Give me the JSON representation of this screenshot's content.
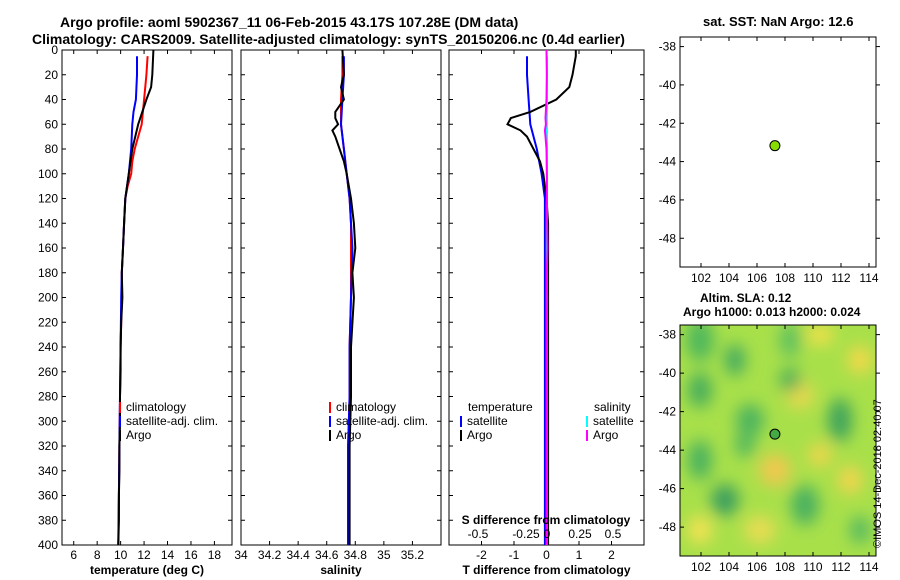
{
  "title_line1": "Argo profile: aoml 5902367_11 06-Feb-2015 43.17S 107.28E (DM data)",
  "title_line2": "Climatology: CARS2009. Satellite-adjusted climatology: synTS_20150206.nc (0.4d earlier)",
  "colors": {
    "climatology": "#ff0000",
    "satellite": "#0000ff",
    "argo": "#000000",
    "sat_salinity": "#00ffff",
    "argo_salinity": "#ff00ff",
    "marker": "#88dd00"
  },
  "depth_axis": {
    "range": [
      0,
      400
    ],
    "ticks": [
      0,
      20,
      40,
      60,
      80,
      100,
      120,
      140,
      160,
      180,
      200,
      220,
      240,
      260,
      280,
      300,
      320,
      340,
      360,
      380,
      400
    ]
  },
  "chart_data": [
    {
      "type": "line",
      "id": "temperature",
      "xlabel": "temperature (deg C)",
      "xlim": [
        5,
        19.5
      ],
      "xticks": [
        6,
        8,
        10,
        12,
        14,
        16,
        18
      ],
      "ylabel": "depth",
      "ylim": [
        400,
        0
      ],
      "legend": [
        "climatology",
        "satellite-adj. clim.",
        "Argo"
      ],
      "series": [
        {
          "name": "climatology",
          "color": "#ff0000",
          "depth": [
            5,
            20,
            40,
            60,
            70,
            80,
            90,
            100,
            110,
            120,
            140,
            160,
            180,
            200,
            240,
            280,
            320,
            360,
            400
          ],
          "values": [
            12.3,
            12.2,
            12.0,
            11.8,
            11.5,
            11.2,
            11.0,
            10.9,
            10.6,
            10.4,
            10.3,
            10.2,
            10.1,
            10.1,
            10.0,
            9.95,
            9.9,
            9.85,
            9.8
          ]
        },
        {
          "name": "satellite-adj. clim.",
          "color": "#0000ff",
          "depth": [
            5,
            20,
            40,
            50,
            60,
            80,
            100,
            120,
            140,
            160,
            180,
            200,
            240,
            280,
            320,
            360,
            400
          ],
          "values": [
            11.4,
            11.4,
            11.3,
            11.1,
            11.0,
            10.9,
            10.7,
            10.4,
            10.3,
            10.2,
            10.1,
            10.05,
            10.0,
            9.95,
            9.9,
            9.85,
            9.8
          ]
        },
        {
          "name": "Argo",
          "color": "#000000",
          "depth": [
            0,
            20,
            30,
            40,
            60,
            80,
            100,
            120,
            140,
            160,
            180,
            200,
            220,
            240,
            260,
            280,
            300,
            320,
            340,
            360,
            380,
            400
          ],
          "values": [
            12.8,
            12.7,
            12.6,
            12.2,
            11.5,
            11.0,
            10.7,
            10.4,
            10.3,
            10.2,
            10.1,
            10.15,
            10.05,
            10.0,
            10.0,
            9.95,
            9.95,
            9.9,
            9.9,
            9.85,
            9.85,
            9.8
          ]
        }
      ]
    },
    {
      "type": "line",
      "id": "salinity",
      "xlabel": "salinity",
      "xlim": [
        34,
        35.4
      ],
      "xticks": [
        34,
        34.2,
        34.4,
        34.6,
        34.8,
        35,
        35.2
      ],
      "ylabel": "depth",
      "ylim": [
        400,
        0
      ],
      "legend": [
        "climatology",
        "satellite-adj. clim.",
        "Argo"
      ],
      "series": [
        {
          "name": "climatology",
          "color": "#ff0000",
          "depth": [
            5,
            20,
            40,
            60,
            80,
            100,
            120,
            140,
            160,
            200,
            240,
            280,
            320,
            360,
            400
          ],
          "values": [
            34.71,
            34.71,
            34.7,
            34.7,
            34.72,
            34.74,
            34.76,
            34.77,
            34.77,
            34.77,
            34.76,
            34.76,
            34.75,
            34.75,
            34.75
          ]
        },
        {
          "name": "satellite-adj. clim.",
          "color": "#0000ff",
          "depth": [
            5,
            20,
            40,
            60,
            80,
            100,
            120,
            140,
            160,
            200,
            240,
            280,
            320,
            360,
            400
          ],
          "values": [
            34.72,
            34.72,
            34.71,
            34.7,
            34.72,
            34.74,
            34.76,
            34.77,
            34.78,
            34.77,
            34.76,
            34.76,
            34.75,
            34.75,
            34.75
          ]
        },
        {
          "name": "Argo",
          "color": "#000000",
          "depth": [
            0,
            20,
            30,
            40,
            50,
            55,
            60,
            65,
            70,
            80,
            90,
            100,
            120,
            140,
            160,
            180,
            200,
            240,
            280,
            320,
            360,
            400
          ],
          "values": [
            34.71,
            34.72,
            34.7,
            34.72,
            34.66,
            34.66,
            34.68,
            34.64,
            34.66,
            34.69,
            34.72,
            34.74,
            34.77,
            34.79,
            34.8,
            34.78,
            34.79,
            34.77,
            34.77,
            34.76,
            34.76,
            34.76
          ]
        }
      ]
    },
    {
      "type": "line",
      "id": "difference",
      "xlabel": "T difference from climatology",
      "xlim": [
        -3,
        3
      ],
      "xticks": [
        -2,
        -1,
        0,
        1,
        2
      ],
      "secondary_xlabel": "S difference from climatology",
      "secondary_xticks": [
        "-0.5",
        "-0.25",
        "0",
        "0.25",
        "0.5"
      ],
      "ylabel": "depth",
      "ylim": [
        400,
        0
      ],
      "legend_temperature": [
        "temperature",
        "satellite",
        "Argo"
      ],
      "legend_salinity": [
        "salinity",
        "satellite",
        "Argo"
      ],
      "series": [
        {
          "name": "temperature satellite",
          "color": "#0000ff",
          "depth": [
            5,
            20,
            40,
            60,
            80,
            100,
            120,
            140,
            160,
            200,
            240,
            280,
            320,
            360,
            400
          ],
          "values": [
            -0.6,
            -0.6,
            -0.55,
            -0.5,
            -0.3,
            -0.15,
            -0.05,
            -0.05,
            -0.05,
            -0.05,
            -0.05,
            -0.05,
            -0.05,
            -0.05,
            -0.05
          ]
        },
        {
          "name": "temperature Argo",
          "color": "#000000",
          "depth": [
            0,
            5,
            20,
            30,
            40,
            50,
            55,
            60,
            65,
            70,
            80,
            90,
            100,
            120,
            140,
            160,
            200,
            240,
            280,
            320,
            360,
            400
          ],
          "values": [
            0.9,
            0.9,
            0.8,
            0.7,
            0.3,
            -0.5,
            -1.1,
            -1.2,
            -0.8,
            -0.6,
            -0.4,
            -0.2,
            -0.1,
            0.0,
            0.05,
            0.05,
            0.05,
            0.05,
            0.05,
            0.05,
            0.05,
            0.05
          ]
        },
        {
          "name": "salinity satellite",
          "color": "#00ffff",
          "depth": [
            5,
            40,
            60,
            80,
            100,
            120,
            160,
            200,
            240,
            280,
            320,
            360,
            400
          ],
          "values": [
            0.02,
            0.02,
            0.01,
            0.02,
            0.02,
            0.01,
            0.01,
            0.01,
            0.01,
            0.01,
            0.01,
            0.01,
            0.01
          ]
        },
        {
          "name": "salinity Argo",
          "color": "#ff00ff",
          "depth": [
            0,
            20,
            40,
            55,
            60,
            65,
            70,
            80,
            100,
            140,
            160,
            180,
            200,
            240,
            280,
            320,
            360,
            400
          ],
          "values": [
            0.0,
            0.01,
            0.0,
            -0.03,
            -0.02,
            -0.05,
            -0.03,
            0.0,
            0.01,
            0.02,
            0.03,
            0.01,
            0.02,
            0.01,
            0.0,
            0.0,
            0.0,
            0.0
          ]
        }
      ]
    },
    {
      "type": "scatter",
      "id": "sst_map",
      "title": "sat. SST: NaN Argo: 12.6",
      "xlim": [
        100.5,
        114.5
      ],
      "ylim": [
        -49.5,
        -37.5
      ],
      "xticks": [
        102,
        104,
        106,
        108,
        110,
        112,
        114
      ],
      "yticks": [
        -38,
        -40,
        -42,
        -44,
        -46,
        -48
      ],
      "points": [
        {
          "lon": 107.28,
          "lat": -43.17
        }
      ]
    },
    {
      "type": "heatmap",
      "id": "sla_map",
      "title_line1": "Altim. SLA: 0.12",
      "title_line2": "Argo h1000: 0.013 h2000: 0.024",
      "xlim": [
        100.5,
        114.5
      ],
      "ylim": [
        -49.5,
        -37.5
      ],
      "xticks": [
        102,
        104,
        106,
        108,
        110,
        112,
        114
      ],
      "yticks": [
        -38,
        -40,
        -42,
        -44,
        -46,
        -48
      ],
      "points": [
        {
          "lon": 107.28,
          "lat": -43.17
        }
      ]
    }
  ],
  "footer_stamp": "©IMOS 14-Dec-2018 02:40:07"
}
